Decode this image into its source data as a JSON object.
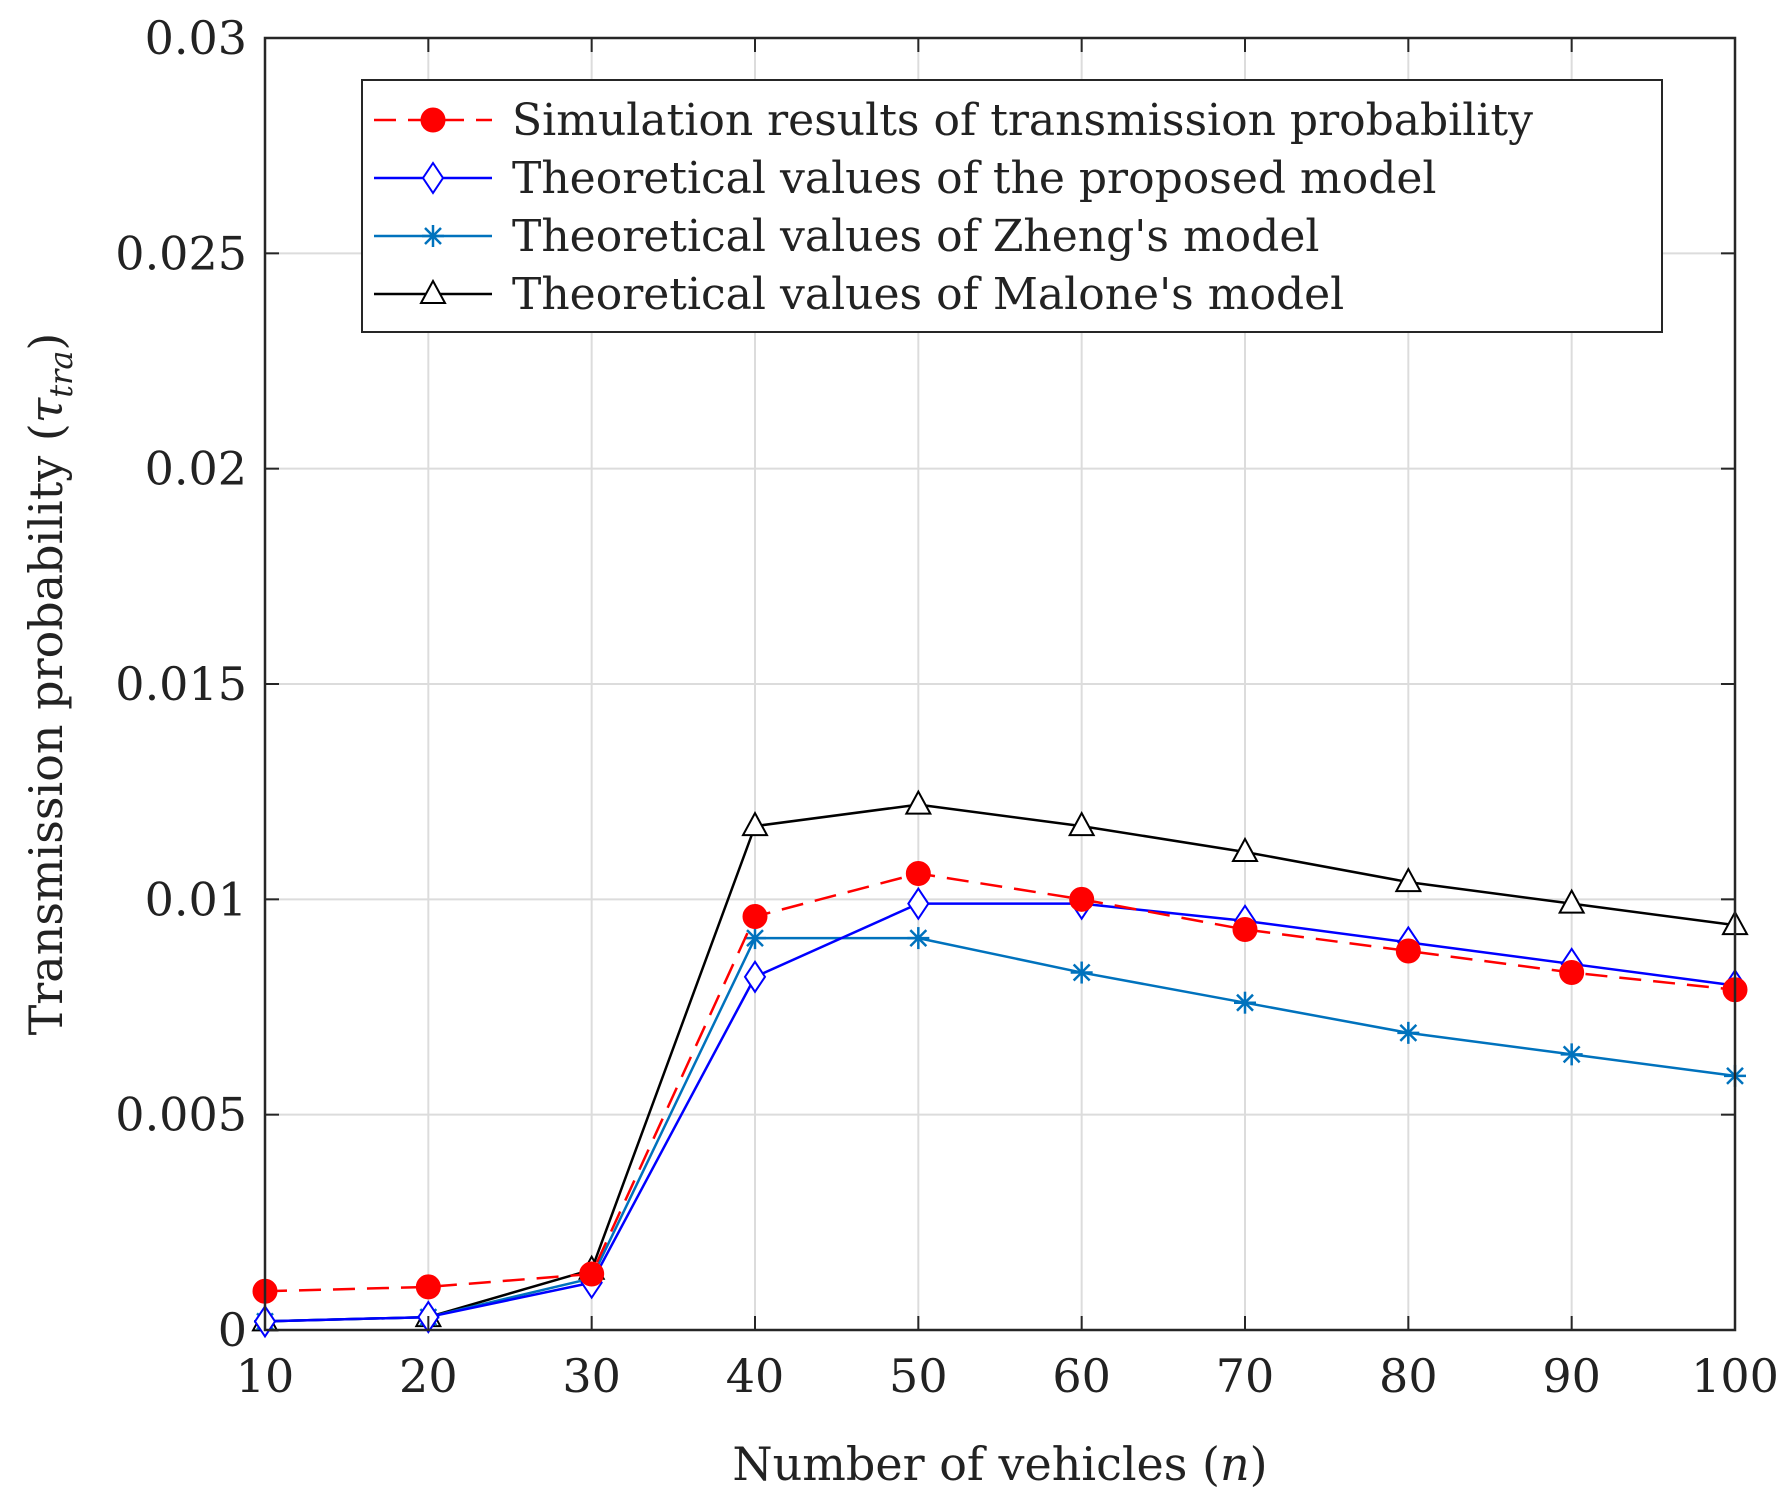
{
  "chart_data": {
    "type": "line",
    "title": "",
    "xlabel": "Number of vehicles (",
    "xlabel_var": "n",
    "xlabel_close": ")",
    "ylabel": "Transmission probability (",
    "ylabel_var": "τ",
    "ylabel_sub": "tra",
    "ylabel_close": ")",
    "xlim": [
      10,
      100
    ],
    "ylim": [
      0,
      0.03
    ],
    "grid": true,
    "legend_position": "top-right",
    "x": [
      10,
      20,
      30,
      40,
      50,
      60,
      70,
      80,
      90,
      100
    ],
    "x_tick_labels": [
      "10",
      "20",
      "30",
      "40",
      "50",
      "60",
      "70",
      "80",
      "90",
      "100"
    ],
    "y_ticks": [
      0,
      0.005,
      0.01,
      0.015,
      0.02,
      0.025,
      0.03
    ],
    "y_tick_labels": [
      "0",
      "0.005",
      "0.01",
      "0.015",
      "0.02",
      "0.025",
      "0.03"
    ],
    "series": [
      {
        "name": "Simulation results of  transmission probability",
        "color": "#ff0000",
        "line_style": "dashed",
        "marker": "filled-circle",
        "values": [
          0.0009,
          0.001,
          0.0013,
          0.0096,
          0.0106,
          0.01,
          0.0093,
          0.0088,
          0.0083,
          0.0079
        ]
      },
      {
        "name": "Theoretical values of the proposed model",
        "color": "#0000ff",
        "line_style": "solid",
        "marker": "diamond",
        "values": [
          0.0002,
          0.0003,
          0.0011,
          0.0082,
          0.0099,
          0.0099,
          0.0095,
          0.009,
          0.0085,
          0.008
        ]
      },
      {
        "name": "Theoretical values of Zheng's model",
        "color": "#0072bd",
        "line_style": "solid",
        "marker": "asterisk",
        "values": [
          0.0002,
          0.0003,
          0.0012,
          0.0091,
          0.0091,
          0.0083,
          0.0076,
          0.0069,
          0.0064,
          0.0059
        ]
      },
      {
        "name": "Theoretical values of Malone's model",
        "color": "#000000",
        "line_style": "solid",
        "marker": "triangle",
        "values": [
          0.0002,
          0.0003,
          0.0014,
          0.0117,
          0.0122,
          0.0117,
          0.0111,
          0.0104,
          0.0099,
          0.0094
        ]
      }
    ]
  }
}
